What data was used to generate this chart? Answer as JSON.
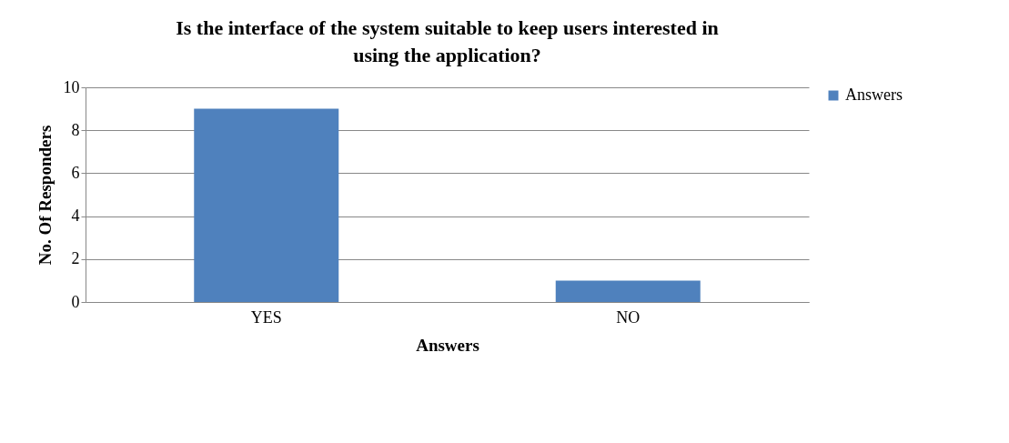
{
  "chart_data": {
    "type": "bar",
    "title": "Is the interface of the system suitable to keep users interested in using the application?",
    "xlabel": "Answers",
    "ylabel": "No. Of Responders",
    "categories": [
      "YES",
      "NO"
    ],
    "series": [
      {
        "name": "Answers",
        "color": "#4f81bd",
        "values": [
          9,
          1
        ]
      }
    ],
    "ylim": [
      0,
      10
    ],
    "yticks": [
      0,
      2,
      4,
      6,
      8,
      10
    ],
    "grid": "y",
    "legend": "right"
  }
}
